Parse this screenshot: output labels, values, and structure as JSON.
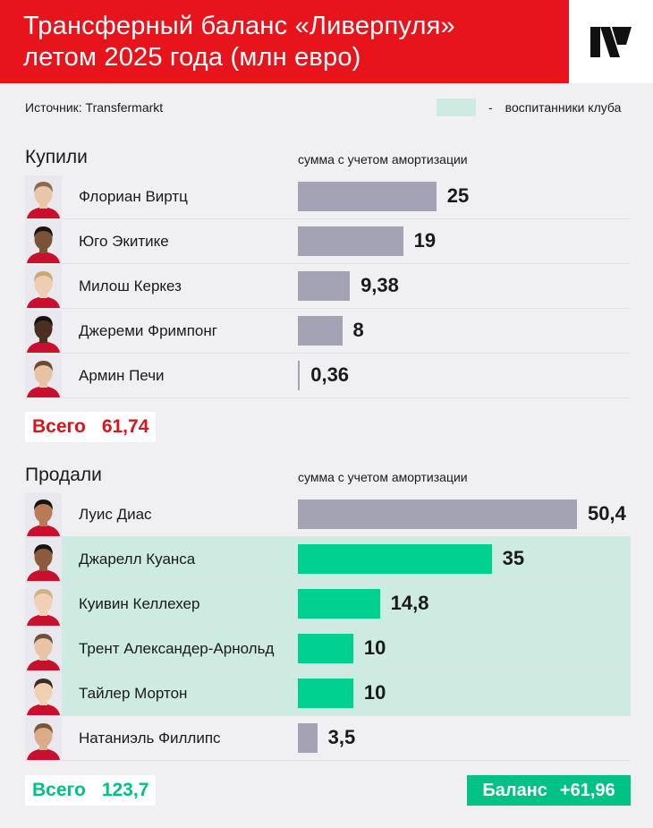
{
  "header": {
    "title_line1": "Трансферный баланс «Ливерпуля»",
    "title_line2": "летом 2025 года (млн евро)",
    "logo": "brand-logo"
  },
  "source": "Источник: Transfermarkt",
  "legend": {
    "dash": "-",
    "label": "воспитанники клуба",
    "color": "#cdebe0"
  },
  "colors": {
    "bar_gray": "#a3a3b5",
    "bar_green": "#00d190",
    "header_red": "#e8141c",
    "academy_bg": "#cdebe0"
  },
  "chart_data": [
    {
      "type": "bar",
      "title": "Купили",
      "subtitle": "сумма с учетом амортизации",
      "categories": [
        "Флориан Виртц",
        "Юго Экитике",
        "Милош Керкез",
        "Джереми Фримпонг",
        "Армин Печи"
      ],
      "values": [
        25,
        19,
        9.38,
        8,
        0.36
      ],
      "value_labels": [
        "25",
        "19",
        "9,38",
        "8",
        "0,36"
      ],
      "academy": [
        false,
        false,
        false,
        false,
        false
      ],
      "xlim": [
        0,
        50.4
      ],
      "total_label": "Всего",
      "total_value": "61,74"
    },
    {
      "type": "bar",
      "title": "Продали",
      "subtitle": "сумма с учетом амортизации",
      "categories": [
        "Луис Диас",
        "Джарелл Куанса",
        "Куивин Келлехер",
        "Трент Александер-Арнольд",
        "Тайлер Мортон",
        "Натаниэль Филлипс"
      ],
      "values": [
        50.4,
        35,
        14.8,
        10,
        10,
        3.5
      ],
      "value_labels": [
        "50,4",
        "35",
        "14,8",
        "10",
        "10",
        "3,5"
      ],
      "academy": [
        false,
        true,
        true,
        true,
        true,
        false
      ],
      "xlim": [
        0,
        50.4
      ],
      "total_label": "Всего",
      "total_value": "123,7"
    }
  ],
  "balance": {
    "label": "Баланс",
    "value": "+61,96"
  }
}
